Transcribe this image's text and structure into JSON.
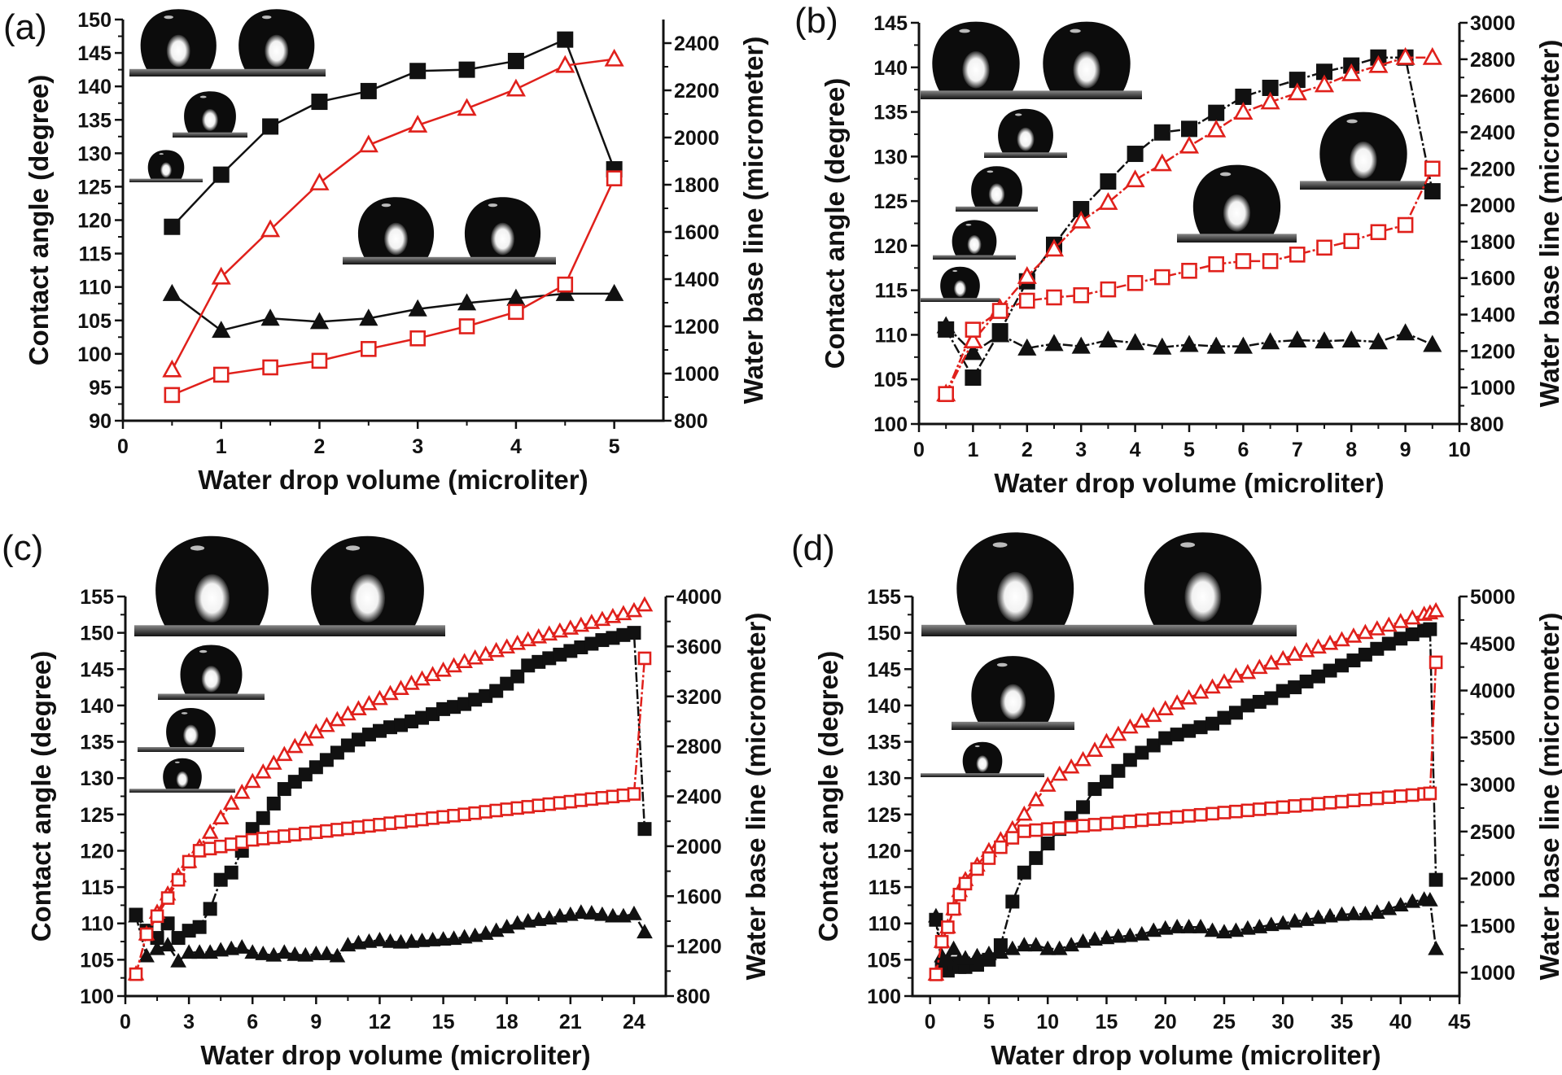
{
  "colors": {
    "black": "#111111",
    "red": "#e0201b"
  },
  "chart_data": [
    {
      "panel_label": "(a)",
      "type": "scatter",
      "xlabel": "Water drop volume (microliter)",
      "ylabel": "Contact angle (degree)",
      "y2label": "Water base line (micrometer)",
      "xlim": [
        0,
        5.5
      ],
      "ylim": [
        90,
        150
      ],
      "y2lim": [
        800,
        2500
      ],
      "xticks": [
        0,
        1,
        2,
        3,
        4,
        5
      ],
      "yticks": [
        90,
        95,
        100,
        105,
        110,
        115,
        120,
        125,
        130,
        135,
        140,
        145,
        150
      ],
      "y2ticks": [
        800,
        1000,
        1200,
        1400,
        1600,
        1800,
        2000,
        2200,
        2400
      ],
      "x": [
        0.5,
        1,
        1.5,
        2,
        2.5,
        3,
        3.5,
        4,
        4.5,
        5
      ],
      "series": [
        {
          "marker": "filled-square",
          "color": "black",
          "axis": "left",
          "values": [
            119,
            126.8,
            134,
            137.7,
            139.3,
            142.3,
            142.5,
            143.8,
            147,
            127.6
          ]
        },
        {
          "marker": "filled-triangle",
          "color": "black",
          "axis": "left",
          "values": [
            109,
            103.5,
            105.3,
            104.8,
            105.3,
            106.7,
            107.6,
            108.3,
            109,
            109
          ]
        },
        {
          "marker": "open-triangle",
          "color": "red",
          "axis": "right",
          "values": [
            1015,
            1408,
            1609,
            1807,
            1968,
            2052,
            2123,
            2205,
            2305,
            2332
          ]
        },
        {
          "marker": "open-square",
          "color": "red",
          "axis": "right",
          "values": [
            909,
            995,
            1026,
            1054,
            1104,
            1149,
            1200,
            1261,
            1377,
            1827
          ]
        }
      ]
    },
    {
      "panel_label": "(b)",
      "type": "scatter",
      "xlabel": "Water drop volume (microliter)",
      "ylabel": "Contact angle (degree)",
      "y2label": "Water base line (micrometer)",
      "xlim": [
        0,
        10
      ],
      "ylim": [
        100,
        145
      ],
      "y2lim": [
        800,
        3000
      ],
      "xticks": [
        0,
        1,
        2,
        3,
        4,
        5,
        6,
        7,
        8,
        9,
        10
      ],
      "yticks": [
        100,
        105,
        110,
        115,
        120,
        125,
        130,
        135,
        140,
        145
      ],
      "y2ticks": [
        800,
        1000,
        1200,
        1400,
        1600,
        1800,
        2000,
        2200,
        2400,
        2600,
        2800,
        3000
      ],
      "x": [
        0.5,
        1,
        1.5,
        2,
        2.5,
        3,
        3.5,
        4,
        4.5,
        5,
        5.5,
        6,
        6.5,
        7,
        7.5,
        8,
        8.5,
        9,
        9.5
      ],
      "series": [
        {
          "marker": "filled-square",
          "color": "black",
          "axis": "left",
          "values": [
            110.6,
            105.2,
            110.4,
            116,
            120.1,
            124.1,
            127.2,
            130.3,
            132.7,
            133.1,
            134.9,
            136.7,
            137.7,
            138.6,
            139.5,
            140.2,
            141.1,
            141.1,
            126.1
          ]
        },
        {
          "marker": "filled-triangle",
          "color": "black",
          "axis": "left",
          "values": [
            111,
            108,
            110,
            108.5,
            109,
            108.7,
            109.4,
            109.1,
            108.6,
            108.9,
            108.7,
            108.7,
            109.2,
            109.4,
            109.3,
            109.4,
            109.2,
            110.2,
            108.9
          ]
        },
        {
          "marker": "open-triangle",
          "color": "red",
          "axis": "right",
          "values": [
            964,
            1255,
            1432,
            1608,
            1758,
            1912,
            2014,
            2138,
            2226,
            2323,
            2412,
            2509,
            2565,
            2615,
            2659,
            2720,
            2765,
            2809,
            2809
          ]
        },
        {
          "marker": "open-square",
          "color": "red",
          "axis": "right",
          "values": [
            964,
            1317,
            1420,
            1476,
            1494,
            1506,
            1538,
            1573,
            1605,
            1640,
            1676,
            1693,
            1693,
            1729,
            1767,
            1803,
            1852,
            1891,
            2200
          ]
        }
      ]
    },
    {
      "panel_label": "(c)",
      "type": "scatter",
      "xlabel": "Water drop volume (microliter)",
      "ylabel": "Contact angle (degree)",
      "y2label": "Water base line (micrometer)",
      "xlim": [
        0,
        25.5
      ],
      "ylim": [
        100,
        155
      ],
      "y2lim": [
        800,
        4000
      ],
      "xticks": [
        0,
        3,
        6,
        9,
        12,
        15,
        18,
        21,
        24
      ],
      "yticks": [
        100,
        105,
        110,
        115,
        120,
        125,
        130,
        135,
        140,
        145,
        150,
        155
      ],
      "y2ticks": [
        800,
        1200,
        1600,
        2000,
        2400,
        2800,
        3200,
        3600,
        4000
      ],
      "x": [
        0.5,
        1,
        1.5,
        2,
        2.5,
        3,
        3.5,
        4,
        4.5,
        5,
        5.5,
        6,
        6.5,
        7,
        7.5,
        8,
        8.5,
        9,
        9.5,
        10,
        10.5,
        11,
        11.5,
        12,
        12.5,
        13,
        13.5,
        14,
        14.5,
        15,
        15.5,
        16,
        16.5,
        17,
        17.5,
        18,
        18.5,
        19,
        19.5,
        20,
        20.5,
        21,
        21.5,
        22,
        22.5,
        23,
        23.5,
        24,
        24.5
      ],
      "series": [
        {
          "marker": "filled-square",
          "color": "black",
          "axis": "left",
          "values": [
            111.2,
            109,
            108,
            110,
            108,
            109,
            109.5,
            112,
            116,
            117,
            120,
            123,
            124.5,
            126.5,
            128.5,
            129.5,
            130.5,
            131.5,
            132.5,
            133.5,
            134.5,
            135.3,
            136,
            136.5,
            137,
            137.3,
            137.8,
            138.3,
            138.8,
            139.5,
            139.8,
            140.2,
            140.8,
            141.3,
            142,
            143,
            144,
            145.5,
            146,
            146.5,
            147,
            147.5,
            148,
            148.5,
            149,
            149.3,
            149.7,
            150,
            123
          ]
        },
        {
          "marker": "filled-triangle",
          "color": "black",
          "axis": "left",
          "values": [
            111,
            105.5,
            106.5,
            107,
            104.8,
            106,
            106,
            106,
            106.3,
            106.5,
            106.7,
            106,
            105.8,
            105.6,
            106,
            105.7,
            105.6,
            105.8,
            105.8,
            105.5,
            107,
            107.3,
            107.5,
            107.7,
            107.5,
            107.4,
            107.5,
            107.6,
            107.7,
            107.8,
            107.9,
            108.1,
            108.3,
            108.6,
            109,
            109.5,
            110,
            110.3,
            110.5,
            110.7,
            111,
            111.2,
            111.5,
            111.4,
            111.2,
            111,
            111,
            111.3,
            108.8
          ]
        },
        {
          "marker": "open-triangle",
          "color": "red",
          "axis": "right",
          "values": [
            975,
            1295,
            1469,
            1615,
            1760,
            1876,
            1993,
            2109,
            2225,
            2342,
            2429,
            2516,
            2592,
            2662,
            2732,
            2796,
            2854,
            2913,
            2964,
            3011,
            3057,
            3098,
            3139,
            3180,
            3220,
            3261,
            3302,
            3337,
            3372,
            3407,
            3442,
            3476,
            3505,
            3535,
            3564,
            3593,
            3622,
            3651,
            3674,
            3697,
            3721,
            3744,
            3767,
            3790,
            3814,
            3837,
            3860,
            3884,
            3930
          ]
        },
        {
          "marker": "open-square",
          "color": "red",
          "axis": "right",
          "values": [
            975,
            1295,
            1440,
            1585,
            1731,
            1876,
            1964,
            1981,
            1998,
            2016,
            2033,
            2051,
            2061,
            2071,
            2081,
            2092,
            2102,
            2112,
            2122,
            2133,
            2143,
            2153,
            2163,
            2173,
            2184,
            2194,
            2204,
            2214,
            2225,
            2235,
            2245,
            2255,
            2265,
            2276,
            2286,
            2296,
            2306,
            2316,
            2327,
            2337,
            2347,
            2357,
            2368,
            2378,
            2388,
            2398,
            2408,
            2419,
            3505
          ]
        }
      ]
    },
    {
      "panel_label": "(d)",
      "type": "scatter",
      "xlabel": "Water drop volume (microliter)",
      "ylabel": "Contact angle (degree)",
      "y2label": "Water base line (micrometer)",
      "xlim": [
        -1.5,
        45
      ],
      "ylim": [
        100,
        155
      ],
      "y2lim": [
        750,
        5000
      ],
      "xticks": [
        0,
        5,
        10,
        15,
        20,
        25,
        30,
        35,
        40,
        45
      ],
      "yticks": [
        100,
        105,
        110,
        115,
        120,
        125,
        130,
        135,
        140,
        145,
        150,
        155
      ],
      "y2ticks": [
        1000,
        1500,
        2000,
        2500,
        3000,
        3500,
        4000,
        4500,
        5000
      ],
      "x": [
        0.5,
        1,
        1.5,
        2,
        2.5,
        3,
        4,
        5,
        6,
        7,
        8,
        9,
        10,
        11,
        12,
        13,
        14,
        15,
        16,
        17,
        18,
        19,
        20,
        21,
        22,
        23,
        24,
        25,
        26,
        27,
        28,
        29,
        30,
        31,
        32,
        33,
        34,
        35,
        36,
        37,
        38,
        39,
        40,
        41,
        42,
        42.5,
        43
      ],
      "series": [
        {
          "marker": "filled-square",
          "color": "black",
          "axis": "left",
          "values": [
            110.5,
            104,
            103.5,
            104.5,
            104,
            104,
            104.3,
            105,
            107,
            113,
            117,
            119,
            121,
            123,
            124.5,
            126,
            128.5,
            129.5,
            131,
            132.5,
            133.5,
            134.5,
            135.5,
            136,
            136.5,
            137,
            137.5,
            138.3,
            139,
            140,
            140.5,
            141,
            142,
            142.5,
            143.3,
            144,
            144.8,
            145.5,
            146.2,
            147,
            147.8,
            148.5,
            149.2,
            149.8,
            150.3,
            150.5,
            116
          ]
        },
        {
          "marker": "filled-triangle",
          "color": "black",
          "axis": "left",
          "values": [
            111,
            105.5,
            105,
            106.5,
            105,
            105.2,
            105.5,
            105.8,
            106,
            106.5,
            107,
            107,
            106.5,
            106.5,
            107,
            107.5,
            107.8,
            108,
            108.2,
            108.3,
            108.5,
            109,
            109.3,
            109.5,
            109.5,
            109.5,
            109,
            108.8,
            109,
            109.3,
            109.5,
            109.8,
            110,
            110.3,
            110.5,
            110.8,
            111,
            111.2,
            111.3,
            111.3,
            111.5,
            112,
            112.5,
            113,
            113.3,
            113.2,
            106.5
          ]
        },
        {
          "marker": "open-triangle",
          "color": "red",
          "axis": "right",
          "values": [
            980,
            1328,
            1482,
            1676,
            1869,
            1985,
            2140,
            2294,
            2410,
            2526,
            2681,
            2835,
            2990,
            3106,
            3183,
            3261,
            3361,
            3454,
            3531,
            3608,
            3670,
            3732,
            3802,
            3864,
            3918,
            3980,
            4034,
            4088,
            4150,
            4188,
            4242,
            4289,
            4335,
            4382,
            4420,
            4459,
            4498,
            4536,
            4575,
            4614,
            4652,
            4691,
            4730,
            4768,
            4807,
            4822,
            4845
          ]
        },
        {
          "marker": "open-square",
          "color": "red",
          "axis": "right",
          "values": [
            980,
            1328,
            1482,
            1676,
            1830,
            1946,
            2101,
            2217,
            2333,
            2433,
            2503,
            2515,
            2527,
            2538,
            2550,
            2562,
            2573,
            2585,
            2597,
            2608,
            2620,
            2632,
            2643,
            2655,
            2667,
            2678,
            2690,
            2702,
            2713,
            2725,
            2737,
            2748,
            2760,
            2772,
            2783,
            2795,
            2807,
            2818,
            2830,
            2842,
            2853,
            2865,
            2877,
            2888,
            2900,
            2906,
            4300
          ]
        }
      ]
    }
  ]
}
